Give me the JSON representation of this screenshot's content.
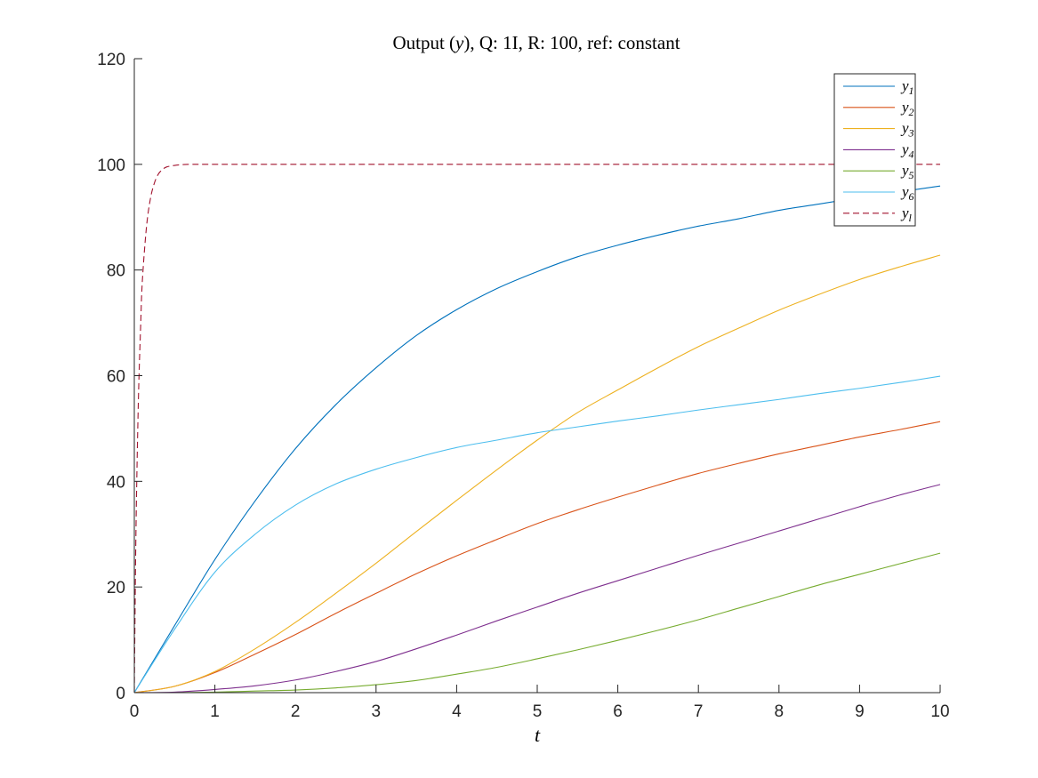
{
  "chart_data": {
    "type": "line",
    "title": "Output (y), Q: 1I, R: 100, ref: constant",
    "title_parts": {
      "prefix": "Output (",
      "var": "y",
      "suffix": "), Q: 1I, R: 100, ref: constant"
    },
    "xlabel": "t",
    "ylabel": "",
    "xlim": [
      0,
      10
    ],
    "ylim": [
      0,
      120
    ],
    "xticks": [
      0,
      1,
      2,
      3,
      4,
      5,
      6,
      7,
      8,
      9,
      10
    ],
    "yticks": [
      0,
      20,
      40,
      60,
      80,
      100,
      120
    ],
    "grid": false,
    "legend_position": "top-right",
    "x": [
      0,
      0.5,
      1,
      1.5,
      2,
      2.5,
      3,
      3.5,
      4,
      4.5,
      5,
      5.5,
      6,
      6.5,
      7,
      7.5,
      8,
      8.5,
      9,
      9.5,
      10
    ],
    "series": [
      {
        "name": "y1",
        "label_base": "y",
        "label_sub": "1",
        "color": "#0072BD",
        "dash": "solid",
        "values": [
          0,
          12.7,
          25.2,
          36.3,
          46.2,
          54.5,
          61.5,
          67.6,
          72.5,
          76.5,
          79.7,
          82.5,
          84.7,
          86.6,
          88.3,
          89.7,
          91.3,
          92.5,
          93.7,
          94.8,
          95.9
        ]
      },
      {
        "name": "y2",
        "label_base": "y",
        "label_sub": "2",
        "color": "#D95319",
        "dash": "solid",
        "values": [
          0,
          1.2,
          3.8,
          7.3,
          11.0,
          15.0,
          18.8,
          22.5,
          25.9,
          29.0,
          32.0,
          34.6,
          37.0,
          39.3,
          41.5,
          43.4,
          45.2,
          46.8,
          48.4,
          49.8,
          51.3
        ]
      },
      {
        "name": "y3",
        "label_base": "y",
        "label_sub": "3",
        "color": "#EDB120",
        "dash": "solid",
        "values": [
          0,
          1.2,
          4.0,
          8.3,
          13.3,
          18.8,
          24.5,
          30.5,
          36.4,
          42.2,
          47.8,
          53.0,
          57.3,
          61.5,
          65.5,
          69.0,
          72.4,
          75.4,
          78.2,
          80.6,
          82.8
        ]
      },
      {
        "name": "y4",
        "label_base": "y",
        "label_sub": "4",
        "color": "#7E2F8E",
        "dash": "solid",
        "values": [
          0,
          0.1,
          0.6,
          1.3,
          2.4,
          4.0,
          5.9,
          8.3,
          10.9,
          13.6,
          16.2,
          18.8,
          21.2,
          23.6,
          26.0,
          28.3,
          30.6,
          32.9,
          35.2,
          37.4,
          39.4
        ]
      },
      {
        "name": "y5",
        "label_base": "y",
        "label_sub": "5",
        "color": "#77AC30",
        "dash": "solid",
        "values": [
          0,
          0.0,
          0.1,
          0.3,
          0.5,
          0.9,
          1.5,
          2.3,
          3.5,
          4.8,
          6.4,
          8.1,
          9.9,
          11.8,
          13.8,
          16.0,
          18.2,
          20.4,
          22.4,
          24.4,
          26.4
        ]
      },
      {
        "name": "y6",
        "label_base": "y",
        "label_sub": "6",
        "color": "#4DBEEE",
        "dash": "solid",
        "values": [
          0,
          12.0,
          22.8,
          30.0,
          35.5,
          39.5,
          42.3,
          44.5,
          46.4,
          47.8,
          49.2,
          50.3,
          51.4,
          52.4,
          53.5,
          54.5,
          55.5,
          56.6,
          57.6,
          58.7,
          59.9
        ]
      },
      {
        "name": "yl",
        "label_base": "y",
        "label_sub": "l",
        "color": "#A2142F",
        "dash": "dashed",
        "x": [
          0,
          0.02,
          0.05,
          0.08,
          0.1,
          0.15,
          0.2,
          0.25,
          0.3,
          0.35,
          0.4,
          0.5,
          0.6,
          0.7,
          1,
          2,
          3,
          4,
          5,
          6,
          7,
          8,
          9,
          10
        ],
        "values": [
          0,
          30,
          55,
          70,
          78,
          88,
          93.5,
          96.5,
          98.2,
          99.0,
          99.5,
          99.8,
          99.95,
          100,
          100,
          100,
          100,
          100,
          100,
          100,
          100,
          100,
          100,
          100
        ]
      }
    ]
  }
}
